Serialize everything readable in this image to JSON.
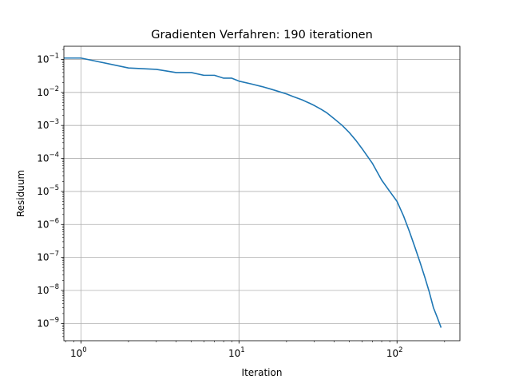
{
  "chart_data": {
    "type": "line",
    "title": "Gradienten Verfahren: 190 iterationen",
    "xlabel": "Iteration",
    "ylabel": "Residuum",
    "xscale": "log",
    "yscale": "log",
    "xlim": [
      0.78,
      250
    ],
    "ylim": [
      3e-10,
      0.25
    ],
    "grid": true,
    "x_ticks": [
      {
        "value": 1,
        "base": "10",
        "exp": "0"
      },
      {
        "value": 10,
        "base": "10",
        "exp": "1"
      },
      {
        "value": 100,
        "base": "10",
        "exp": "2"
      }
    ],
    "y_ticks": [
      {
        "value": 0.1,
        "base": "10",
        "exp": "−1"
      },
      {
        "value": 0.01,
        "base": "10",
        "exp": "−2"
      },
      {
        "value": 0.001,
        "base": "10",
        "exp": "−3"
      },
      {
        "value": 0.0001,
        "base": "10",
        "exp": "−4"
      },
      {
        "value": 1e-05,
        "base": "10",
        "exp": "−5"
      },
      {
        "value": 1e-06,
        "base": "10",
        "exp": "−6"
      },
      {
        "value": 1e-07,
        "base": "10",
        "exp": "−7"
      },
      {
        "value": 1e-08,
        "base": "10",
        "exp": "−8"
      },
      {
        "value": 1e-09,
        "base": "10",
        "exp": "−9"
      }
    ],
    "series": [
      {
        "color": "#1f77b4",
        "x": [
          0,
          1,
          2,
          3,
          4,
          5,
          6,
          7,
          8,
          9,
          10,
          12,
          14,
          16,
          18,
          20,
          22,
          25,
          28,
          30,
          33,
          36,
          40,
          45,
          50,
          55,
          60,
          70,
          80,
          90,
          100,
          110,
          120,
          130,
          140,
          150,
          160,
          170,
          180,
          190
        ],
        "y": [
          0.11,
          0.11,
          0.055,
          0.05,
          0.04,
          0.04,
          0.033,
          0.033,
          0.027,
          0.027,
          0.022,
          0.018,
          0.015,
          0.0125,
          0.0105,
          0.009,
          0.0075,
          0.006,
          0.0047,
          0.004,
          0.0031,
          0.0024,
          0.0016,
          0.001,
          0.0006,
          0.00035,
          0.0002,
          7e-05,
          2.2e-05,
          1e-05,
          5e-06,
          1.8e-06,
          6e-07,
          2e-07,
          7e-08,
          2.5e-08,
          9e-09,
          3e-09,
          1.5e-09,
          7.5e-10
        ]
      }
    ]
  }
}
